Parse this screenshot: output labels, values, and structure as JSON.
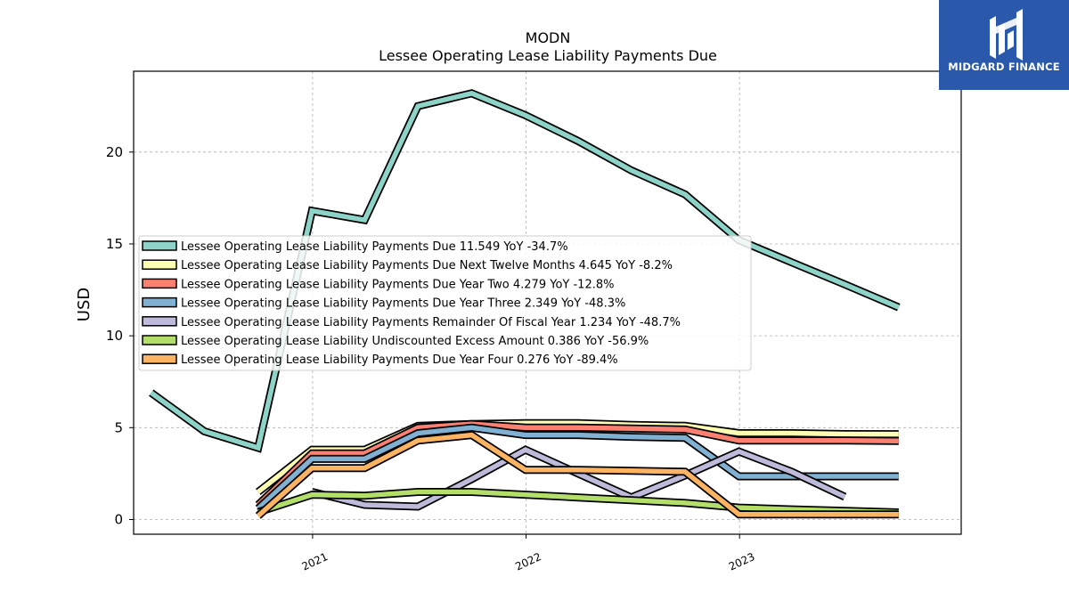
{
  "brand": {
    "name": "MIDGARD FINANCE",
    "icon": "midgard-logo-icon",
    "color": "#2a59ab"
  },
  "chart_data": {
    "type": "line",
    "title": "MODN",
    "subtitle": "Lessee Operating Lease Liability Payments Due",
    "ylabel": "USD",
    "xlabel": "",
    "xlim": [
      "2020-03-01",
      "2024-01-15"
    ],
    "ylim": [
      -0.8,
      24.4
    ],
    "yticks": [
      0,
      5,
      10,
      15,
      20
    ],
    "xticks": [
      {
        "date": "2021-01-01",
        "label": "2021"
      },
      {
        "date": "2022-01-01",
        "label": "2022"
      },
      {
        "date": "2023-01-01",
        "label": "2023"
      }
    ],
    "grid": true,
    "legend_position": "center-left",
    "series": [
      {
        "name": "Lessee Operating Lease Liability Payments Due",
        "legend": "Lessee Operating Lease Liability Payments Due  11.549 YoY -34.7%",
        "color": "#8dd3c7",
        "points": [
          [
            "2020-03-31",
            6.9
          ],
          [
            "2020-06-30",
            4.8
          ],
          [
            "2020-09-30",
            3.9
          ],
          [
            "2020-12-31",
            16.8
          ],
          [
            "2021-03-31",
            16.3
          ],
          [
            "2021-06-30",
            22.5
          ],
          [
            "2021-09-30",
            23.2
          ],
          [
            "2021-12-31",
            22.0
          ],
          [
            "2022-03-31",
            20.6
          ],
          [
            "2022-06-30",
            19.0
          ],
          [
            "2022-09-30",
            17.7
          ],
          [
            "2022-12-31",
            15.2
          ],
          [
            "2023-03-31",
            14.0
          ],
          [
            "2023-06-30",
            12.8
          ],
          [
            "2023-09-30",
            11.549
          ]
        ]
      },
      {
        "name": "Lessee Operating Lease Liability Payments Due Next Twelve Months",
        "legend": "Lessee Operating Lease Liability Payments Due Next Twelve Months  4.645 YoY -8.2%",
        "color": "#ffffb3",
        "points": [
          [
            "2020-09-30",
            1.5
          ],
          [
            "2020-12-31",
            3.8
          ],
          [
            "2021-03-31",
            3.8
          ],
          [
            "2021-06-30",
            5.1
          ],
          [
            "2021-09-30",
            5.2
          ],
          [
            "2021-12-31",
            5.25
          ],
          [
            "2022-03-31",
            5.25
          ],
          [
            "2022-06-30",
            5.15
          ],
          [
            "2022-09-30",
            5.1
          ],
          [
            "2022-12-31",
            4.7
          ],
          [
            "2023-03-31",
            4.7
          ],
          [
            "2023-06-30",
            4.65
          ],
          [
            "2023-09-30",
            4.645
          ]
        ]
      },
      {
        "name": "Lessee Operating Lease Liability Payments Due Year Two",
        "legend": "Lessee Operating Lease Liability Payments Due Year Two  4.279 YoY -12.8%",
        "color": "#fb8072",
        "points": [
          [
            "2020-09-30",
            0.8
          ],
          [
            "2020-12-31",
            3.6
          ],
          [
            "2021-03-31",
            3.6
          ],
          [
            "2021-06-30",
            5.0
          ],
          [
            "2021-09-30",
            5.2
          ],
          [
            "2021-12-31",
            5.0
          ],
          [
            "2022-03-31",
            5.0
          ],
          [
            "2022-06-30",
            4.95
          ],
          [
            "2022-09-30",
            4.9
          ],
          [
            "2022-12-31",
            4.3
          ],
          [
            "2023-03-31",
            4.3
          ],
          [
            "2023-06-30",
            4.3
          ],
          [
            "2023-09-30",
            4.279
          ]
        ]
      },
      {
        "name": "Lessee Operating Lease Liability Payments Due Year Three",
        "legend": "Lessee Operating Lease Liability Payments Due Year Three  2.349 YoY -48.3%",
        "color": "#80b1d3",
        "points": [
          [
            "2020-09-30",
            0.6
          ],
          [
            "2020-12-31",
            3.3
          ],
          [
            "2021-03-31",
            3.3
          ],
          [
            "2021-06-30",
            4.7
          ],
          [
            "2021-09-30",
            5.0
          ],
          [
            "2021-12-31",
            4.6
          ],
          [
            "2022-03-31",
            4.6
          ],
          [
            "2022-06-30",
            4.5
          ],
          [
            "2022-09-30",
            4.45
          ],
          [
            "2022-12-31",
            2.35
          ],
          [
            "2023-03-31",
            2.35
          ],
          [
            "2023-06-30",
            2.35
          ],
          [
            "2023-09-30",
            2.349
          ]
        ]
      },
      {
        "name": "Lessee Operating Lease Liability Payments Remainder Of Fiscal Year",
        "legend": "Lessee Operating Lease Liability Payments Remainder Of Fiscal Year  1.234 YoY -48.7%",
        "color": "#bebada",
        "points": [
          [
            "2020-12-31",
            1.5
          ],
          [
            "2021-03-31",
            0.8
          ],
          [
            "2021-06-30",
            0.7
          ],
          [
            "2021-09-30",
            2.2
          ],
          [
            "2021-12-31",
            3.8
          ],
          [
            "2022-03-31",
            2.5
          ],
          [
            "2022-06-30",
            1.2
          ],
          [
            "2022-09-30",
            2.4
          ],
          [
            "2022-12-31",
            3.7
          ],
          [
            "2023-03-31",
            2.6
          ],
          [
            "2023-06-30",
            1.234
          ]
        ]
      },
      {
        "name": "Lessee Operating Lease Liability Undiscounted Excess Amount",
        "legend": "Lessee Operating Lease Liability Undiscounted Excess Amount  0.386 YoY -56.9%",
        "color": "#b3de69",
        "points": [
          [
            "2020-09-30",
            0.4
          ],
          [
            "2020-12-31",
            1.35
          ],
          [
            "2021-03-31",
            1.3
          ],
          [
            "2021-06-30",
            1.5
          ],
          [
            "2021-09-30",
            1.5
          ],
          [
            "2021-12-31",
            1.35
          ],
          [
            "2022-03-31",
            1.2
          ],
          [
            "2022-06-30",
            1.05
          ],
          [
            "2022-09-30",
            0.9
          ],
          [
            "2022-12-31",
            0.65
          ],
          [
            "2023-03-31",
            0.55
          ],
          [
            "2023-06-30",
            0.47
          ],
          [
            "2023-09-30",
            0.386
          ]
        ]
      },
      {
        "name": "Lessee Operating Lease Liability Payments Due Year Four",
        "legend": "Lessee Operating Lease Liability Payments Due Year Four  0.276 YoY -89.4%",
        "color": "#fdb462",
        "points": [
          [
            "2020-09-30",
            0.2
          ],
          [
            "2020-12-31",
            2.8
          ],
          [
            "2021-03-31",
            2.8
          ],
          [
            "2021-06-30",
            4.3
          ],
          [
            "2021-09-30",
            4.6
          ],
          [
            "2021-12-31",
            2.7
          ],
          [
            "2022-03-31",
            2.7
          ],
          [
            "2022-06-30",
            2.65
          ],
          [
            "2022-09-30",
            2.6
          ],
          [
            "2022-12-31",
            0.28
          ],
          [
            "2023-03-31",
            0.28
          ],
          [
            "2023-06-30",
            0.28
          ],
          [
            "2023-09-30",
            0.276
          ]
        ]
      }
    ]
  }
}
